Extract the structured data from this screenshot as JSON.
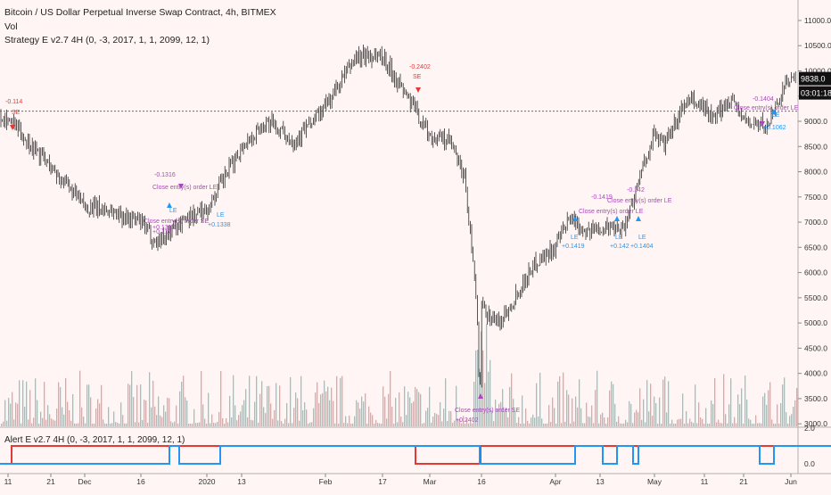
{
  "header": {
    "symbol_title": "Bitcoin / US Dollar Perpetual Inverse Swap Contract, 4h, BITMEX",
    "vol_label": "Vol",
    "strategy_label": "Strategy E v2.7 4H (0, -3, 2017, 1, 1, 2099, 12, 1)",
    "alert_label": "Alert E v2.7 4H (0, -3, 2017, 1, 1, 2099, 12, 1)"
  },
  "price_badges": {
    "last_price": "9838.0",
    "countdown": "03:01:18",
    "line_price": 9200
  },
  "colors": {
    "background": "#fff5f5",
    "candle": "#111111",
    "long": "#2196f3",
    "short": "#e53935",
    "close": "#ab47bc",
    "vol_up": "#26a69a",
    "vol_down": "#ef5350"
  },
  "chart_data": [
    {
      "type": "candlestick",
      "timeframe": "4h",
      "y_ticks": [
        3000,
        3500,
        4000,
        4500,
        5000,
        5500,
        6000,
        6500,
        7000,
        7500,
        8000,
        8500,
        9000,
        9500,
        10000,
        10500,
        11000
      ],
      "y_tick_labels": [
        "3000.0",
        "3500.0",
        "4000.0",
        "4500.0",
        "5000.0",
        "5500.0",
        "6000.0",
        "6500.0",
        "7000.0",
        "7500.0",
        "8000.0",
        "8500.0",
        "9000.0",
        "9500.0",
        "10000.0",
        "10500.0",
        "11000.0"
      ],
      "ylim": [
        2950,
        11300
      ],
      "x_ticks": [
        "11",
        "21",
        "Dec",
        "16",
        "2020",
        "13",
        "Feb",
        "17",
        "Mar",
        "16",
        "Apr",
        "13",
        "May",
        "11",
        "21",
        "Jun"
      ],
      "price_path": [
        [
          "11",
          9050
        ],
        [
          "21",
          8100
        ],
        [
          "Dec",
          7300
        ],
        [
          "16",
          7000
        ],
        [
          "2020",
          7250
        ],
        [
          "13",
          8500
        ],
        [
          "Feb",
          9300
        ],
        [
          "17",
          10300
        ],
        [
          "Mar",
          8700
        ],
        [
          "16",
          5300
        ],
        [
          "Apr",
          6500
        ],
        [
          "13",
          6900
        ],
        [
          "May",
          8800
        ],
        [
          "11",
          9300
        ],
        [
          "21",
          9000
        ],
        [
          "Jun",
          9838
        ]
      ],
      "annotations": [
        {
          "text": "-0.114",
          "color": "short"
        },
        {
          "text": "SE",
          "color": "short"
        },
        {
          "text": "-0.1316",
          "color": "close"
        },
        {
          "text": "Close entry(s) order LE",
          "color": "close"
        },
        {
          "text": "LE",
          "color": "long"
        },
        {
          "text": "Close entry(s) order SE",
          "color": "close"
        },
        {
          "text": "+0.1316",
          "color": "close"
        },
        {
          "text": "+0.114",
          "color": "close"
        },
        {
          "text": "LE",
          "color": "long"
        },
        {
          "text": "+0.1338",
          "color": "long"
        },
        {
          "text": "-0.2402",
          "color": "short"
        },
        {
          "text": "SE",
          "color": "short"
        },
        {
          "text": "Close entry(s) order SE",
          "color": "close"
        },
        {
          "text": "+0.2402",
          "color": "close"
        },
        {
          "text": "-0.1419",
          "color": "close"
        },
        {
          "text": "Close entry(s) order LE",
          "color": "close"
        },
        {
          "text": "LE",
          "color": "long"
        },
        {
          "text": "+0.1419",
          "color": "long"
        },
        {
          "text": "LE",
          "color": "long"
        },
        {
          "text": "+0.142",
          "color": "long"
        },
        {
          "text": "-0.142",
          "color": "close"
        },
        {
          "text": "Close entry(s) order LE",
          "color": "close"
        },
        {
          "text": "LE",
          "color": "long"
        },
        {
          "text": "+0.1404",
          "color": "long"
        },
        {
          "text": "-0.1404",
          "color": "close"
        },
        {
          "text": "Close entry(s) order LE",
          "color": "close"
        },
        {
          "text": "LE",
          "color": "long"
        },
        {
          "text": "+0.1062",
          "color": "long"
        }
      ]
    },
    {
      "type": "line",
      "panel": "alert",
      "y_ticks": [
        0.0,
        2.0
      ],
      "y_tick_labels": [
        "0.0",
        "2.0"
      ],
      "ylim": [
        -0.5,
        2.0
      ],
      "series": [
        {
          "color": "short",
          "steps": [
            [
              0,
              0
            ],
            [
              13,
              1
            ],
            [
              466,
              0
            ],
            [
              539,
              1
            ],
            [
              932,
              1
            ]
          ]
        },
        {
          "color": "long",
          "steps": [
            [
              0,
              0
            ],
            [
              190,
              1
            ],
            [
              201,
              0
            ],
            [
              247,
              1
            ],
            [
              538,
              0
            ],
            [
              645,
              1
            ],
            [
              676,
              0
            ],
            [
              692,
              1
            ],
            [
              710,
              0
            ],
            [
              716,
              1
            ],
            [
              852,
              0
            ],
            [
              868,
              1
            ],
            [
              932,
              1
            ]
          ]
        }
      ]
    }
  ]
}
